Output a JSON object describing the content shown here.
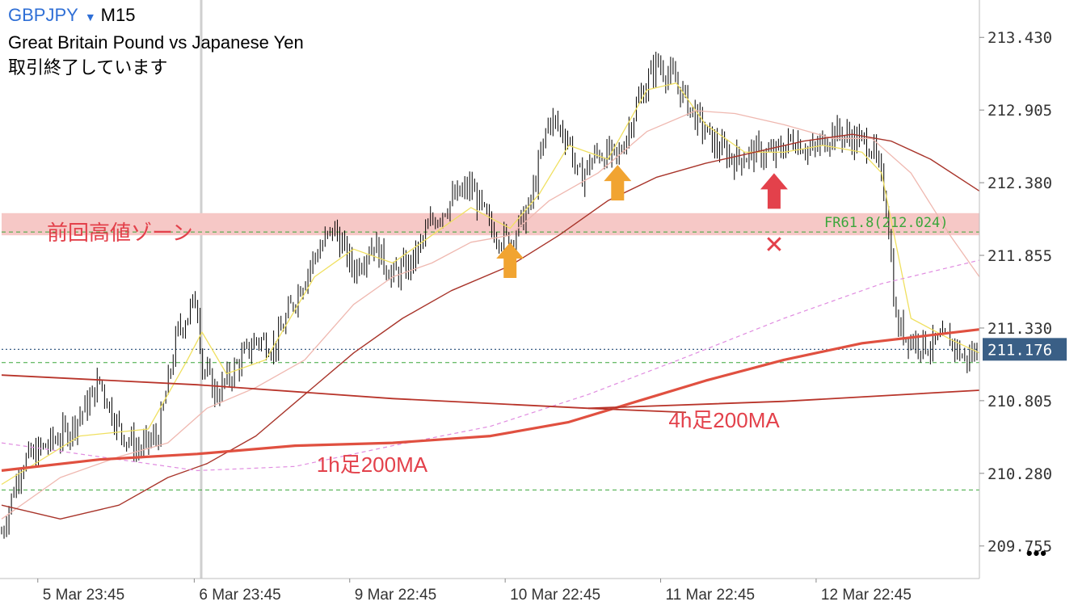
{
  "header": {
    "symbol": "GBPJPY",
    "timeframe": "M15",
    "description": "Great Britain Pound vs Japanese Yen",
    "status": "取引終了しています",
    "dropdown_icon": "triangle-down-icon"
  },
  "more_menu_label": "•••",
  "colors": {
    "candle": "#000000",
    "ma_yellow": "#f0e060",
    "ma_pink": "#efb8b0",
    "ma_brown": "#a8342a",
    "ma_red_thick": "#e05040",
    "ma_magenta_dash": "#e08ce0",
    "zone_fill": "#f6c8c6",
    "annotation_red": "#e3414b",
    "arrow_orange": "#f1a431",
    "green_line": "#3aa63a",
    "price_badge": "#3a5f86"
  },
  "chart_data": {
    "type": "candlestick",
    "symbol": "GBPJPY",
    "timeframe": "M15",
    "y_ticks": [
      "213.430",
      "212.905",
      "212.380",
      "211.855",
      "211.330",
      "210.805",
      "210.280",
      "209.755"
    ],
    "ylim": [
      209.52,
      213.7
    ],
    "x_ticks": [
      "5 Mar 23:45",
      "6 Mar 23:45",
      "9 Mar 22:45",
      "10 Mar 22:45",
      "11 Mar 22:45",
      "12 Mar 22:45"
    ],
    "current_price": "211.176",
    "zone": {
      "label": "前回高値ゾーン",
      "low": 212.0,
      "high": 212.16
    },
    "fib": {
      "label": "FR61.8(212.024)",
      "value": 212.024
    },
    "green_dashed_levels": [
      211.08,
      210.16
    ],
    "annotations": [
      {
        "label": "1h足200MA",
        "x": 0.38,
        "y": 210.35
      },
      {
        "label": "4h足200MA",
        "x": 0.74,
        "y": 210.67
      }
    ],
    "markers": [
      {
        "type": "up_arrow",
        "color": "orange",
        "x": 0.52,
        "y": 211.82
      },
      {
        "type": "up_arrow",
        "color": "orange",
        "x": 0.63,
        "y": 212.38
      },
      {
        "type": "up_arrow",
        "color": "red",
        "x": 0.79,
        "y": 212.32
      },
      {
        "type": "cross",
        "label": "✕",
        "color": "red",
        "x": 0.79,
        "y": 211.93
      }
    ],
    "close_path": [
      [
        0.0,
        209.85
      ],
      [
        0.02,
        210.35
      ],
      [
        0.05,
        210.5
      ],
      [
        0.07,
        210.6
      ],
      [
        0.09,
        210.8
      ],
      [
        0.1,
        210.95
      ],
      [
        0.12,
        210.6
      ],
      [
        0.14,
        210.45
      ],
      [
        0.16,
        210.55
      ],
      [
        0.18,
        211.3
      ],
      [
        0.2,
        211.55
      ],
      [
        0.205,
        211.05
      ],
      [
        0.22,
        210.85
      ],
      [
        0.24,
        211.05
      ],
      [
        0.26,
        211.25
      ],
      [
        0.28,
        211.2
      ],
      [
        0.3,
        211.55
      ],
      [
        0.32,
        211.85
      ],
      [
        0.34,
        212.05
      ],
      [
        0.36,
        211.75
      ],
      [
        0.38,
        211.95
      ],
      [
        0.4,
        211.7
      ],
      [
        0.42,
        211.8
      ],
      [
        0.44,
        212.1
      ],
      [
        0.46,
        212.25
      ],
      [
        0.48,
        212.35
      ],
      [
        0.5,
        212.05
      ],
      [
        0.52,
        211.95
      ],
      [
        0.54,
        212.2
      ],
      [
        0.56,
        212.85
      ],
      [
        0.58,
        212.7
      ],
      [
        0.59,
        212.4
      ],
      [
        0.61,
        212.6
      ],
      [
        0.63,
        212.55
      ],
      [
        0.65,
        212.95
      ],
      [
        0.67,
        213.25
      ],
      [
        0.69,
        213.1
      ],
      [
        0.71,
        212.85
      ],
      [
        0.73,
        212.65
      ],
      [
        0.75,
        212.55
      ],
      [
        0.77,
        212.6
      ],
      [
        0.79,
        212.58
      ],
      [
        0.81,
        212.7
      ],
      [
        0.83,
        212.6
      ],
      [
        0.85,
        212.75
      ],
      [
        0.87,
        212.7
      ],
      [
        0.89,
        212.65
      ],
      [
        0.905,
        212.25
      ],
      [
        0.915,
        211.35
      ],
      [
        0.93,
        211.25
      ],
      [
        0.95,
        211.2
      ],
      [
        0.97,
        211.25
      ],
      [
        0.985,
        211.1
      ],
      [
        1.0,
        211.18
      ]
    ],
    "ma_lines": [
      {
        "name": "yellow",
        "color": "#f0e060",
        "width": 1.3,
        "points": [
          [
            0.0,
            210.2
          ],
          [
            0.08,
            210.55
          ],
          [
            0.15,
            210.6
          ],
          [
            0.19,
            211.1
          ],
          [
            0.205,
            211.3
          ],
          [
            0.23,
            211.0
          ],
          [
            0.27,
            211.1
          ],
          [
            0.32,
            211.7
          ],
          [
            0.36,
            211.9
          ],
          [
            0.4,
            211.8
          ],
          [
            0.44,
            212.0
          ],
          [
            0.48,
            212.2
          ],
          [
            0.52,
            212.05
          ],
          [
            0.55,
            212.3
          ],
          [
            0.58,
            212.65
          ],
          [
            0.62,
            212.55
          ],
          [
            0.66,
            213.05
          ],
          [
            0.69,
            213.1
          ],
          [
            0.72,
            212.8
          ],
          [
            0.76,
            212.6
          ],
          [
            0.8,
            212.6
          ],
          [
            0.84,
            212.65
          ],
          [
            0.88,
            212.6
          ],
          [
            0.9,
            212.45
          ],
          [
            0.93,
            211.4
          ],
          [
            0.97,
            211.25
          ],
          [
            1.0,
            211.15
          ]
        ]
      },
      {
        "name": "pink",
        "color": "#efb8b0",
        "width": 1.3,
        "points": [
          [
            0.0,
            209.95
          ],
          [
            0.06,
            210.25
          ],
          [
            0.12,
            210.4
          ],
          [
            0.17,
            210.5
          ],
          [
            0.21,
            210.75
          ],
          [
            0.26,
            210.9
          ],
          [
            0.31,
            211.1
          ],
          [
            0.36,
            211.5
          ],
          [
            0.4,
            211.7
          ],
          [
            0.44,
            211.8
          ],
          [
            0.48,
            211.95
          ],
          [
            0.52,
            212.0
          ],
          [
            0.56,
            212.25
          ],
          [
            0.61,
            212.45
          ],
          [
            0.66,
            212.75
          ],
          [
            0.71,
            212.9
          ],
          [
            0.75,
            212.88
          ],
          [
            0.8,
            212.8
          ],
          [
            0.85,
            212.7
          ],
          [
            0.89,
            212.7
          ],
          [
            0.93,
            212.45
          ],
          [
            0.97,
            212.0
          ],
          [
            1.0,
            211.7
          ]
        ]
      },
      {
        "name": "brown",
        "color": "#a8342a",
        "width": 1.4,
        "points": [
          [
            0.0,
            210.05
          ],
          [
            0.06,
            209.95
          ],
          [
            0.12,
            210.05
          ],
          [
            0.17,
            210.25
          ],
          [
            0.21,
            210.35
          ],
          [
            0.26,
            210.55
          ],
          [
            0.31,
            210.85
          ],
          [
            0.36,
            211.15
          ],
          [
            0.41,
            211.4
          ],
          [
            0.46,
            211.6
          ],
          [
            0.52,
            211.78
          ],
          [
            0.57,
            212.0
          ],
          [
            0.62,
            212.25
          ],
          [
            0.67,
            212.42
          ],
          [
            0.72,
            212.52
          ],
          [
            0.77,
            212.6
          ],
          [
            0.82,
            212.68
          ],
          [
            0.87,
            212.73
          ],
          [
            0.91,
            212.68
          ],
          [
            0.95,
            212.55
          ],
          [
            1.0,
            212.32
          ]
        ]
      },
      {
        "name": "magenta-dash",
        "color": "#e08ce0",
        "width": 1.2,
        "dash": "5,4",
        "points": [
          [
            0.0,
            210.5
          ],
          [
            0.1,
            210.4
          ],
          [
            0.2,
            210.3
          ],
          [
            0.3,
            210.33
          ],
          [
            0.4,
            210.48
          ],
          [
            0.5,
            210.62
          ],
          [
            0.6,
            210.85
          ],
          [
            0.7,
            211.12
          ],
          [
            0.8,
            211.4
          ],
          [
            0.9,
            211.65
          ],
          [
            1.0,
            211.82
          ]
        ]
      },
      {
        "name": "1h-200MA",
        "color": "#e05040",
        "width": 3.2,
        "points": [
          [
            0.0,
            210.3
          ],
          [
            0.1,
            210.38
          ],
          [
            0.2,
            210.42
          ],
          [
            0.3,
            210.48
          ],
          [
            0.4,
            210.5
          ],
          [
            0.5,
            210.55
          ],
          [
            0.58,
            210.65
          ],
          [
            0.65,
            210.8
          ],
          [
            0.72,
            210.95
          ],
          [
            0.8,
            211.1
          ],
          [
            0.88,
            211.22
          ],
          [
            1.0,
            211.32
          ]
        ]
      },
      {
        "name": "4h-200MA",
        "color": "#b8342a",
        "width": 1.8,
        "points": [
          [
            0.0,
            210.99
          ],
          [
            0.2,
            210.92
          ],
          [
            0.4,
            210.82
          ],
          [
            0.6,
            210.75
          ],
          [
            0.7,
            210.72
          ]
        ]
      },
      {
        "name": "4h-200MA-2",
        "color": "#b8342a",
        "width": 1.8,
        "points": [
          [
            0.6,
            210.75
          ],
          [
            0.8,
            210.8
          ],
          [
            1.0,
            210.88
          ]
        ]
      }
    ]
  }
}
